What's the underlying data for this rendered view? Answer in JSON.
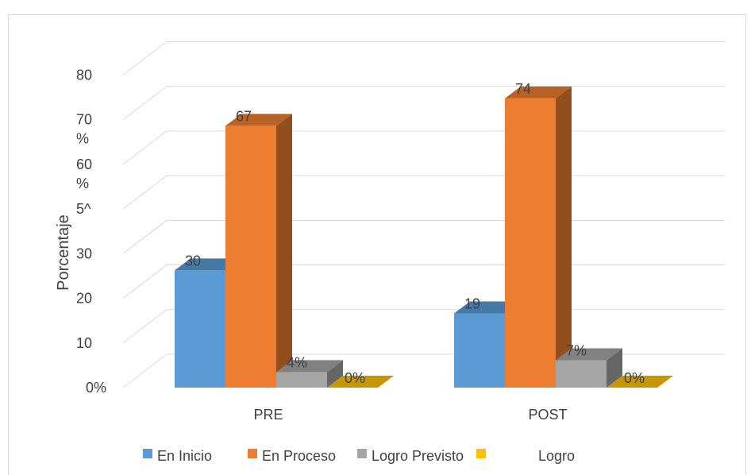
{
  "chart_data": {
    "type": "bar",
    "ylabel": "Porcentaje",
    "categories": [
      "PRE",
      "POST"
    ],
    "y_ticks": [
      "0%",
      "10",
      "20",
      "30",
      "5^",
      "60\n%",
      "70\n%",
      "80"
    ],
    "ylim": [
      0,
      80
    ],
    "grid": true,
    "legend_position": "bottom",
    "series": [
      {
        "name": "En Inicio",
        "values": [
          30,
          19
        ],
        "labels": [
          "30",
          "19"
        ],
        "color": "#5b9bd5"
      },
      {
        "name": "En Proceso",
        "values": [
          67,
          74
        ],
        "labels": [
          "67",
          "74"
        ],
        "color": "#ed7d31"
      },
      {
        "name": "Logro Previsto",
        "values": [
          4,
          7
        ],
        "labels": [
          "4%",
          "7%"
        ],
        "color": "#a5a5a5"
      },
      {
        "name": "Logro",
        "values": [
          0,
          0
        ],
        "labels": [
          "0%",
          "0%"
        ],
        "color": "#ffc000"
      }
    ]
  }
}
